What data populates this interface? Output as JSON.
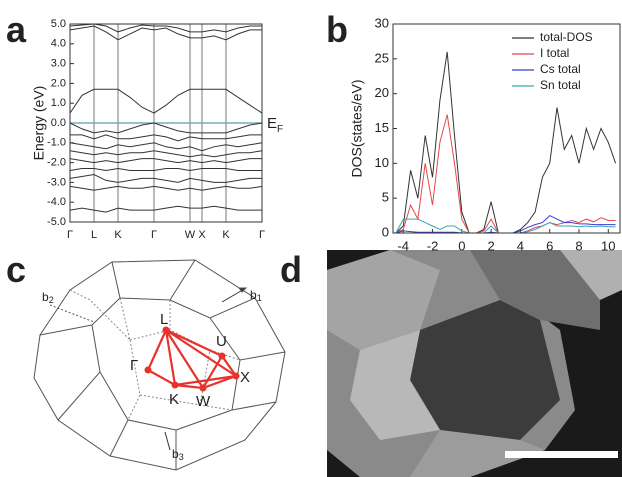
{
  "panels": [
    "a",
    "b",
    "c",
    "d"
  ],
  "chart_data": [
    {
      "type": "line",
      "ylabel": "Energy (eV)",
      "categories": [
        "Γ",
        null,
        "L",
        null,
        "K",
        null,
        null,
        "Γ",
        null,
        null,
        "W",
        "X",
        null,
        "K",
        null,
        null,
        "Γ"
      ],
      "ylim": [
        -5,
        5
      ],
      "yticks": [
        {
          "value": 5,
          "label": "5.0"
        },
        {
          "value": 4,
          "label": "4.0"
        },
        {
          "value": 3,
          "label": "3.0"
        },
        {
          "value": 2,
          "label": "2.0"
        },
        {
          "value": 1,
          "label": "1.0"
        },
        {
          "value": 0,
          "label": "0.0"
        },
        {
          "value": -1,
          "label": "-1.0"
        },
        {
          "value": -2,
          "label": "-2.0"
        },
        {
          "value": -3,
          "label": "-3.0"
        },
        {
          "value": -4,
          "label": "-4.0"
        },
        {
          "value": -5,
          "label": "-5.0"
        }
      ],
      "reference_line": {
        "value": 0,
        "color": "#5b9fae",
        "text": "E",
        "subscript": "F"
      },
      "series": [
        {
          "color": "#333333",
          "values": [
            0.5,
            1.4,
            1.7,
            1.7,
            1.7,
            1.3,
            0.8,
            0.5,
            0.9,
            1.4,
            1.7,
            1.7,
            1.7,
            1.7,
            1.3,
            0.9,
            0.5
          ]
        },
        {
          "color": "#333333",
          "values": [
            4.7,
            4.8,
            4.9,
            4.6,
            4.2,
            4.5,
            4.8,
            4.7,
            4.8,
            4.5,
            4.3,
            4.3,
            4.4,
            4.2,
            4.5,
            4.7,
            4.7
          ]
        },
        {
          "color": "#333333",
          "values": [
            4.9,
            4.95,
            5,
            4.9,
            4.6,
            4.8,
            4.95,
            4.9,
            4.9,
            4.8,
            4.6,
            4.6,
            4.7,
            4.6,
            4.8,
            4.9,
            4.9
          ]
        },
        {
          "color": "#333333",
          "values": [
            0,
            -0.3,
            -0.5,
            -0.4,
            -0.5,
            -0.3,
            -0.1,
            0,
            -0.2,
            -0.4,
            -0.5,
            -0.5,
            -0.5,
            -0.5,
            -0.3,
            -0.1,
            0
          ]
        },
        {
          "color": "#333333",
          "values": [
            -0.6,
            -0.6,
            -0.8,
            -0.6,
            -0.8,
            -0.8,
            -0.7,
            -0.6,
            -0.7,
            -0.9,
            -0.7,
            -0.8,
            -0.8,
            -0.8,
            -0.7,
            -0.6,
            -0.6
          ]
        },
        {
          "color": "#333333",
          "values": [
            -1.0,
            -1.1,
            -1.2,
            -1.3,
            -1.1,
            -1.2,
            -1.1,
            -1.0,
            -1.2,
            -1.3,
            -1.2,
            -1.4,
            -1.2,
            -1.1,
            -1.2,
            -1.1,
            -1.0
          ]
        },
        {
          "color": "#333333",
          "values": [
            -1.4,
            -1.5,
            -1.6,
            -1.5,
            -1.6,
            -1.5,
            -1.5,
            -1.4,
            -1.5,
            -1.6,
            -1.7,
            -1.6,
            -1.7,
            -1.6,
            -1.5,
            -1.5,
            -1.4
          ]
        },
        {
          "color": "#333333",
          "values": [
            -1.8,
            -1.9,
            -2.0,
            -1.9,
            -2.0,
            -1.9,
            -1.8,
            -1.8,
            -1.9,
            -2.0,
            -1.9,
            -2.0,
            -1.9,
            -2.0,
            -1.9,
            -1.8,
            -1.8
          ]
        },
        {
          "color": "#333333",
          "values": [
            -2.4,
            -2.3,
            -2.3,
            -2.4,
            -2.3,
            -2.4,
            -2.4,
            -2.4,
            -2.3,
            -2.3,
            -2.4,
            -2.3,
            -2.3,
            -2.3,
            -2.4,
            -2.4,
            -2.4
          ]
        },
        {
          "color": "#333333",
          "values": [
            -2.8,
            -2.7,
            -2.6,
            -2.9,
            -3.0,
            -2.9,
            -2.8,
            -2.8,
            -2.9,
            -3.0,
            -2.8,
            -2.9,
            -3.0,
            -3.0,
            -2.9,
            -2.8,
            -2.8
          ]
        },
        {
          "color": "#333333",
          "values": [
            -3.2,
            -3.3,
            -3.4,
            -3.3,
            -3.2,
            -3.3,
            -3.3,
            -3.2,
            -3.3,
            -3.4,
            -3.3,
            -3.4,
            -3.3,
            -3.2,
            -3.3,
            -3.3,
            -3.2
          ]
        },
        {
          "color": "#333333",
          "values": [
            -4.4,
            -4.3,
            -4.4,
            -4.5,
            -4.3,
            -4.4,
            -4.4,
            -4.4,
            -4.3,
            -4.2,
            -4.3,
            -4.3,
            -4.2,
            -4.3,
            -4.4,
            -4.4,
            -4.4
          ]
        }
      ]
    },
    {
      "type": "line",
      "ylabel": "DOS(states/eV)",
      "x": [
        -4.5,
        -4,
        -3.5,
        -3,
        -2.5,
        -2,
        -1.5,
        -1,
        -0.5,
        0,
        0.5,
        1,
        1.5,
        2,
        2.5,
        3,
        3.5,
        4,
        4.5,
        5,
        5.5,
        6,
        6.5,
        7,
        7.5,
        8,
        8.5,
        9,
        9.5,
        10,
        10.5
      ],
      "xlim": [
        -4.7,
        10.8
      ],
      "xticks": [
        -4,
        -2,
        0,
        2,
        4,
        6,
        8,
        10
      ],
      "ylim": [
        0,
        30
      ],
      "yticks": [
        0,
        5,
        10,
        15,
        20,
        25,
        30
      ],
      "legend": "top-right",
      "series": [
        {
          "name": "total-DOS",
          "color": "#333333",
          "values": [
            0,
            1,
            9,
            5,
            14,
            8,
            19,
            26,
            14,
            3,
            0,
            0,
            0.5,
            4.5,
            0,
            0,
            0,
            0.5,
            1.5,
            3,
            8,
            10,
            18,
            12,
            14,
            10,
            15,
            12,
            15,
            13,
            10
          ]
        },
        {
          "name": "I total",
          "color": "#e8474c",
          "values": [
            0,
            0.5,
            4,
            2,
            10,
            4,
            13,
            17,
            10,
            2,
            0,
            0,
            0.3,
            2,
            0,
            0,
            0,
            0,
            0.3,
            0.8,
            1,
            1.5,
            1.2,
            1.5,
            1.8,
            1.5,
            2,
            1.6,
            2.2,
            1.8,
            1.8
          ]
        },
        {
          "name": "Cs total",
          "color": "#3b3bd6",
          "values": [
            0,
            0.3,
            0.2,
            0.1,
            0.1,
            0.1,
            0.1,
            0.1,
            0.1,
            0,
            0,
            0,
            0,
            0.1,
            0,
            0,
            0,
            0.3,
            0.8,
            1.2,
            1.5,
            2.5,
            2,
            1.5,
            1.5,
            1.3,
            1.3,
            1.2,
            1.2,
            1.2,
            1.2
          ]
        },
        {
          "name": "Sn total",
          "color": "#3aa6b4",
          "values": [
            0,
            2,
            2,
            2,
            1.5,
            1,
            0.5,
            1,
            1,
            0.3,
            0,
            0,
            0,
            1,
            0,
            0,
            0,
            0,
            0.2,
            0.5,
            1,
            1.5,
            1,
            1,
            1,
            0.9,
            1,
            0.9,
            1,
            0.9,
            0.9
          ]
        }
      ]
    }
  ],
  "brillouin_zone": {
    "points": [
      "L",
      "U",
      "Γ",
      "X",
      "K",
      "W"
    ],
    "vectors": [
      {
        "letter": "b",
        "subscript": "1"
      },
      {
        "letter": "b",
        "subscript": "2"
      },
      {
        "letter": "b",
        "subscript": "3"
      }
    ]
  }
}
